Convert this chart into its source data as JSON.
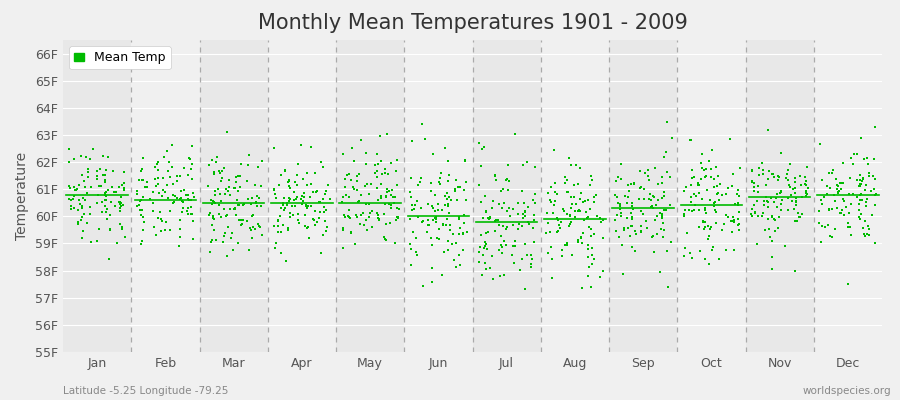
{
  "title": "Monthly Mean Temperatures 1901 - 2009",
  "ylabel": "Temperature",
  "xlabel_labels": [
    "Jan",
    "Feb",
    "Mar",
    "Apr",
    "May",
    "Jun",
    "Jul",
    "Aug",
    "Sep",
    "Oct",
    "Nov",
    "Dec"
  ],
  "latitude": -5.25,
  "longitude": -79.25,
  "years": 109,
  "start_year": 1901,
  "end_year": 2009,
  "monthly_means": [
    60.8,
    60.6,
    60.5,
    60.5,
    60.5,
    60.0,
    59.8,
    59.9,
    60.3,
    60.4,
    60.7,
    60.8
  ],
  "monthly_stds": [
    0.9,
    0.85,
    0.85,
    0.8,
    1.0,
    1.15,
    1.25,
    1.1,
    1.0,
    0.9,
    0.9,
    0.95
  ],
  "ylim": [
    55.0,
    66.5
  ],
  "yticks": [
    55,
    56,
    57,
    58,
    59,
    60,
    61,
    62,
    63,
    64,
    65,
    66
  ],
  "dot_color": "#00BB00",
  "background_color": "#f0f0f0",
  "band_colors": [
    "#e8e8e8",
    "#f0f0f0"
  ],
  "dashed_line_color": "#aaaaaa",
  "grid_color": "#ffffff",
  "title_fontsize": 15,
  "axis_label_fontsize": 10,
  "tick_fontsize": 9,
  "legend_fontsize": 9,
  "watermark_left": "Latitude -5.25 Longitude -79.25",
  "watermark_right": "worldspecies.org",
  "seed": 42
}
